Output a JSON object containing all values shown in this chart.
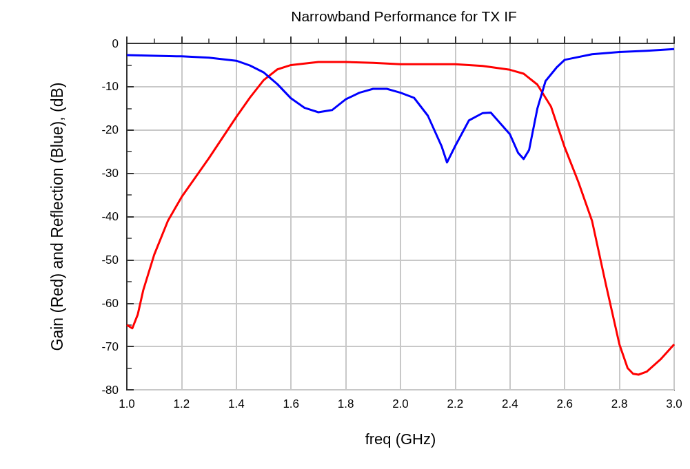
{
  "chart_data": {
    "type": "line",
    "title": "Narrowband Performance for TX IF",
    "xlabel": "freq (GHz)",
    "ylabel": "Gain (Red) and Reflection (Blue), (dB)",
    "xlim": [
      1,
      3
    ],
    "xticks": [
      {
        "value": 1,
        "label": "1.0"
      },
      1.2,
      1.4,
      1.6,
      1.8,
      {
        "value": 2,
        "label": "2.0"
      },
      2.2,
      2.4,
      2.6,
      2.8,
      {
        "value": 3,
        "label": "3.0"
      }
    ],
    "ylim": [
      -80,
      0
    ],
    "yticks": [
      -80,
      -70,
      -60,
      -50,
      -40,
      -30,
      -20,
      -10,
      0
    ],
    "grid": true,
    "marker": "none",
    "line_style": "solid",
    "series": [
      {
        "color": "#ff0000",
        "x": [
          1.0,
          1.02,
          1.04,
          1.06,
          1.1,
          1.15,
          1.2,
          1.3,
          1.4,
          1.45,
          1.5,
          1.55,
          1.6,
          1.7,
          1.8,
          1.9,
          2.0,
          2.1,
          2.2,
          2.3,
          2.4,
          2.45,
          2.5,
          2.55,
          2.6,
          2.65,
          2.7,
          2.75,
          2.8,
          2.83,
          2.85,
          2.87,
          2.9,
          2.95,
          3.0
        ],
        "values": [
          -65,
          -65.8,
          -62.6,
          -57,
          -48.8,
          -41,
          -35.5,
          -26.5,
          -17,
          -12.5,
          -8.5,
          -6,
          -5,
          -4.3,
          -4.3,
          -4.5,
          -4.8,
          -4.8,
          -4.8,
          -5.2,
          -6.1,
          -7,
          -9.5,
          -14.6,
          -24,
          -32,
          -41,
          -55.5,
          -69.5,
          -75,
          -76.3,
          -76.5,
          -75.8,
          -73,
          -69.5
        ]
      },
      {
        "color": "#0000ff",
        "x": [
          1.0,
          1.2,
          1.3,
          1.4,
          1.45,
          1.5,
          1.55,
          1.6,
          1.65,
          1.7,
          1.75,
          1.8,
          1.85,
          1.9,
          1.95,
          2.0,
          2.05,
          2.1,
          2.15,
          2.17,
          2.2,
          2.25,
          2.3,
          2.33,
          2.4,
          2.43,
          2.45,
          2.47,
          2.5,
          2.53,
          2.57,
          2.6,
          2.7,
          2.8,
          2.9,
          3.0
        ],
        "values": [
          -2.7,
          -3,
          -3.3,
          -4,
          -5.1,
          -6.7,
          -9.4,
          -12.7,
          -14.9,
          -15.9,
          -15.4,
          -12.9,
          -11.4,
          -10.5,
          -10.5,
          -11.4,
          -12.6,
          -16.7,
          -23.7,
          -27.5,
          -23.7,
          -17.8,
          -16.1,
          -16,
          -21,
          -25.3,
          -26.7,
          -24.6,
          -15.1,
          -8.7,
          -5.6,
          -3.8,
          -2.5,
          -2,
          -1.7,
          -1.3
        ]
      }
    ]
  }
}
